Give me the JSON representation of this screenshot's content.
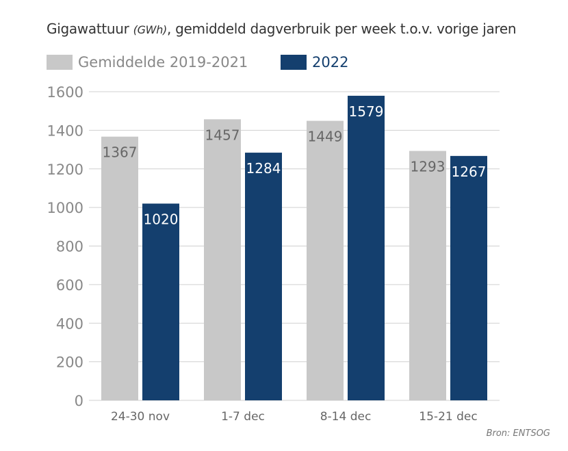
{
  "chart_data": {
    "type": "bar",
    "title": "Gigawattuur",
    "title_unit": "(GWh)",
    "title_rest": ", gemiddeld dagverbruik per week t.o.v. vorige jaren",
    "categories": [
      "24-30 nov",
      "1-7 dec",
      "8-14 dec",
      "15-21 dec"
    ],
    "series": [
      {
        "name": "Gemiddelde 2019-2021",
        "values": [
          1367,
          1457,
          1449,
          1293
        ],
        "color": "#c8c8c8",
        "label_color": "#666666"
      },
      {
        "name": "2022",
        "values": [
          1020,
          1284,
          1579,
          1267
        ],
        "color": "#143f6e",
        "label_color": "#ffffff"
      }
    ],
    "ylim": [
      0,
      1600
    ],
    "yticks": [
      0,
      200,
      400,
      600,
      800,
      1000,
      1200,
      1400,
      1600
    ],
    "grid": true,
    "legend": "top-left",
    "source": "Bron: ENTSOG"
  }
}
